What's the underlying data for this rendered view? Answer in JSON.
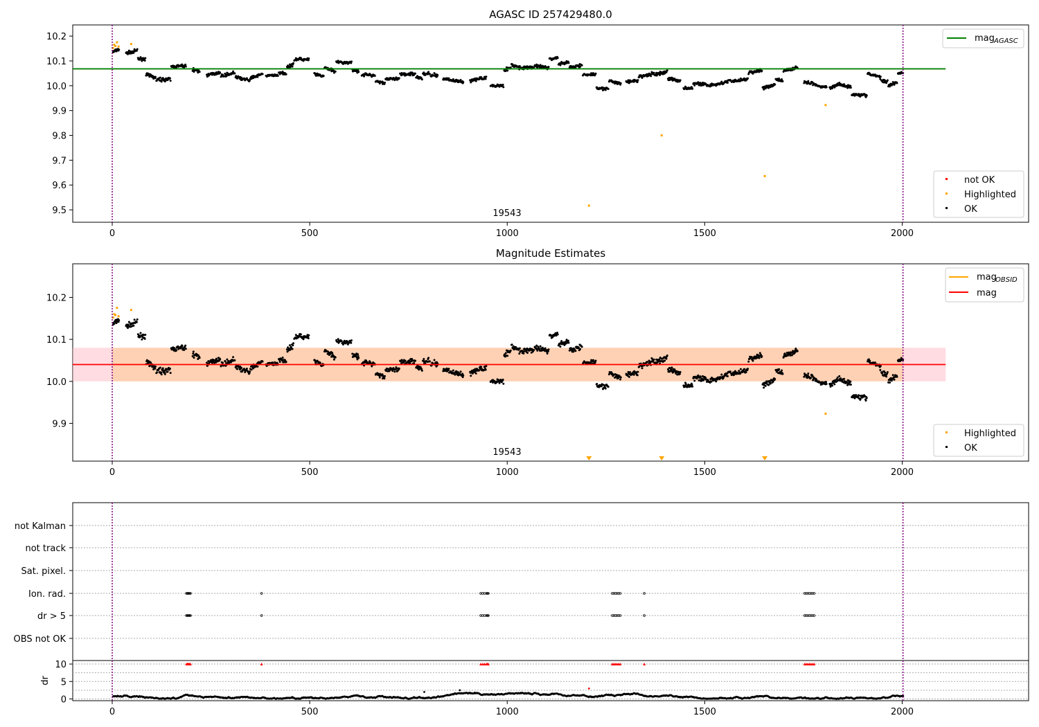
{
  "chart_data": [
    {
      "type": "scatter",
      "title": "AGASC ID 257429480.0",
      "obsid_label": "19543",
      "xlim": [
        -100,
        2320
      ],
      "ylim": [
        9.45,
        10.245
      ],
      "xticks": [
        0,
        500,
        1000,
        1500,
        2000
      ],
      "yticks": [
        9.5,
        9.6,
        9.7,
        9.8,
        9.9,
        10.0,
        10.1,
        10.2
      ],
      "ytick_labels": [
        "9.5",
        "9.6",
        "9.7",
        "9.8",
        "9.9",
        "10.0",
        "10.1",
        "10.2"
      ],
      "xtick_labels": [
        "0",
        "500",
        "1000",
        "1500",
        "2000"
      ],
      "vlines": [
        0,
        2002
      ],
      "hline": {
        "name": "mag_AGASC",
        "value": 10.068,
        "x": [
          -100,
          2110
        ],
        "color": "#008000"
      },
      "highlighted_points": [
        [
          2,
          10.152
        ],
        [
          5,
          10.165
        ],
        [
          8,
          10.16
        ],
        [
          12,
          10.175
        ],
        [
          16,
          10.158
        ],
        [
          48,
          10.168
        ],
        [
          1207,
          9.517
        ],
        [
          1391,
          9.8
        ],
        [
          1652,
          9.636
        ],
        [
          1806,
          9.922
        ]
      ],
      "legend": {
        "lines": [
          {
            "label": "mag",
            "subscript": "AGASC",
            "color": "#008000"
          }
        ],
        "markers": [
          {
            "label": "not OK",
            "color": "#ff0000"
          },
          {
            "label": "Highlighted",
            "color": "#ffa500"
          },
          {
            "label": "OK",
            "color": "#000000"
          }
        ]
      }
    },
    {
      "type": "scatter",
      "title": "Magnitude Estimates",
      "obsid_label": "19543",
      "xlim": [
        -100,
        2320
      ],
      "ylim": [
        9.81,
        10.28
      ],
      "xticks": [
        0,
        500,
        1000,
        1500,
        2000
      ],
      "yticks": [
        9.9,
        10.0,
        10.1,
        10.2
      ],
      "ytick_labels": [
        "9.9",
        "10.0",
        "10.1",
        "10.2"
      ],
      "xtick_labels": [
        "0",
        "500",
        "1000",
        "1500",
        "2000"
      ],
      "vlines": [
        0,
        2002
      ],
      "mean_line": {
        "name": "mag",
        "value": 10.04,
        "x": [
          -100,
          2110
        ],
        "color": "#ff0000"
      },
      "band": {
        "low": 10.0,
        "high": 10.08,
        "obs_x": [
          0,
          2002
        ],
        "outer_x": [
          -100,
          2110
        ]
      },
      "highlighted_points": [
        [
          2,
          10.152
        ],
        [
          5,
          10.16
        ],
        [
          8,
          10.158
        ],
        [
          12,
          10.175
        ],
        [
          16,
          10.155
        ],
        [
          48,
          10.17
        ],
        [
          1806,
          9.923
        ]
      ],
      "offscale_markers": [
        1207,
        1391,
        1652
      ],
      "legend": {
        "lines": [
          {
            "label": "mag",
            "subscript": "OBSID",
            "color": "#ffa500"
          },
          {
            "label": "mag",
            "subscript": "",
            "color": "#ff0000"
          }
        ],
        "markers": [
          {
            "label": "Highlighted",
            "color": "#ffa500"
          },
          {
            "label": "OK",
            "color": "#000000"
          }
        ]
      }
    },
    {
      "type": "scatter",
      "title": "",
      "xlim": [
        -100,
        2320
      ],
      "xticks": [
        0,
        500,
        1000,
        1500,
        2000
      ],
      "xtick_labels": [
        "0",
        "500",
        "1000",
        "1500",
        "2000"
      ],
      "vlines": [
        0,
        2002
      ],
      "flag_rows": [
        "not Kalman",
        "not track",
        "Sat. pixel.",
        "Ion. rad.",
        "dr > 5",
        "OBS not OK"
      ],
      "flag_times": [
        188,
        190,
        192,
        194,
        196,
        198,
        378,
        933,
        938,
        943,
        948,
        950,
        952,
        1266,
        1270,
        1274,
        1278,
        1282,
        1286,
        1347,
        1753,
        1757,
        1761,
        1765,
        1769,
        1773,
        1777
      ],
      "dr_ylim": [
        -0.5,
        11
      ],
      "dr_yticks": [
        0,
        5,
        10
      ],
      "dr_ytick_labels": [
        "0",
        "5",
        "10"
      ],
      "dr_ylabel": "dr",
      "dr_outliers": [
        [
          790,
          2.0
        ],
        [
          880,
          2.5
        ],
        [
          1207,
          3.0
        ]
      ]
    }
  ]
}
